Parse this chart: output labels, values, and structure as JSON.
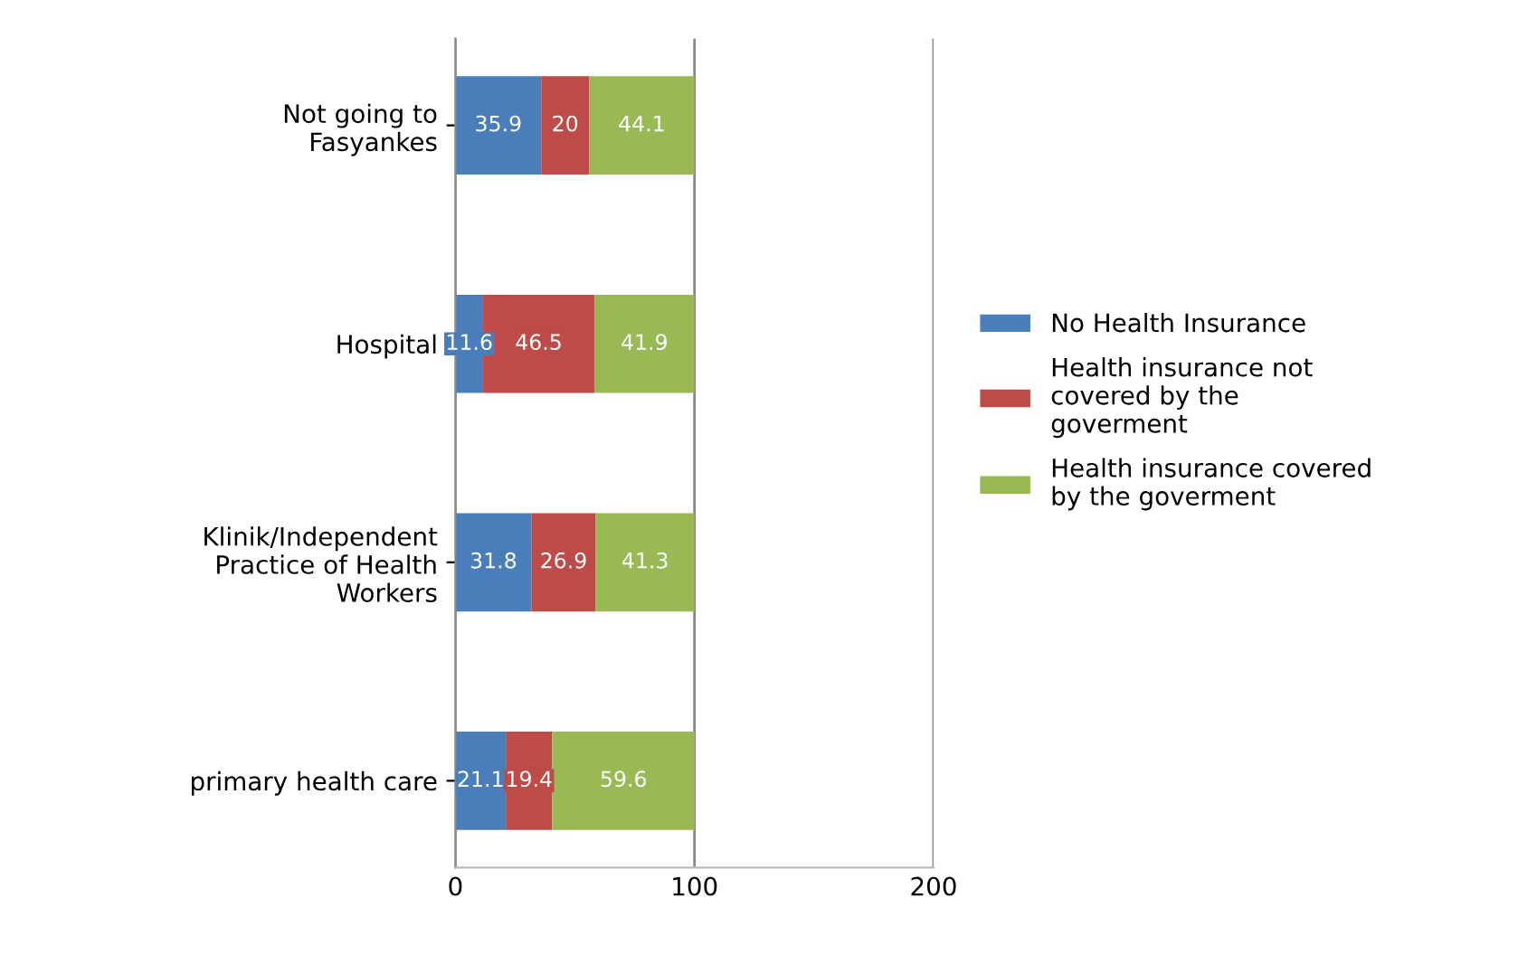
{
  "chart_data": {
    "type": "bar",
    "orientation": "horizontal",
    "stacked": true,
    "categories": [
      "Not going to\nFasyankes",
      "Hospital",
      "Klinik/Independent\nPractice of Health\nWorkers",
      "primary health care"
    ],
    "series": [
      {
        "name": "No Health Insurance",
        "color": "#4a7ebb",
        "values": [
          35.9,
          11.6,
          31.8,
          21.1
        ]
      },
      {
        "name": "Health insurance not\ncovered by the\ngoverment",
        "color": "#be4b48",
        "values": [
          20,
          46.5,
          26.9,
          19.4
        ]
      },
      {
        "name": "Health insurance covered\nby the goverment",
        "color": "#98b954",
        "values": [
          44.1,
          41.9,
          41.3,
          59.6
        ]
      }
    ],
    "xlim": [
      0,
      200
    ],
    "xticks": [
      0,
      100,
      200
    ],
    "grid": "x",
    "legend": "right",
    "data_labels": true
  }
}
